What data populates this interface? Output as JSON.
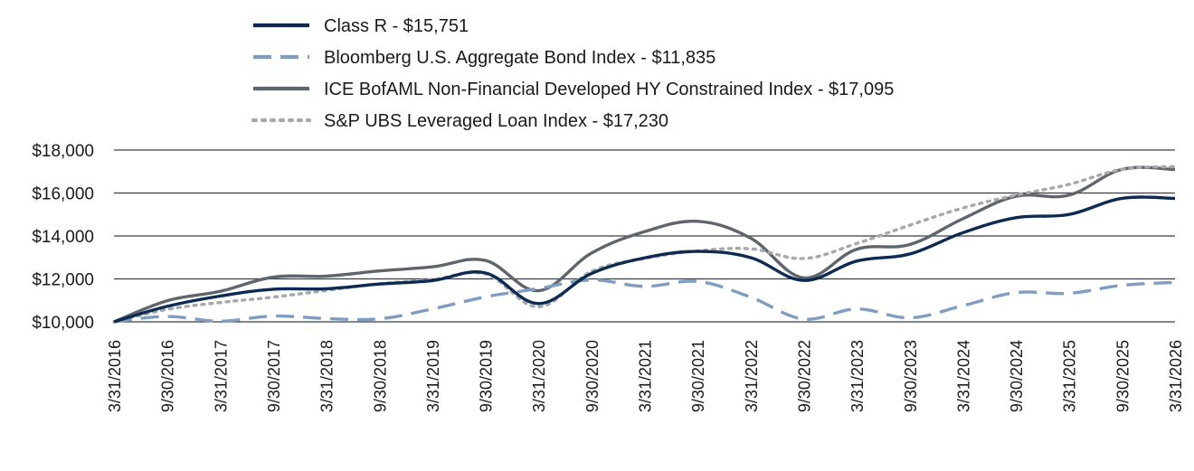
{
  "chart_data": {
    "type": "line",
    "title": "",
    "xlabel": "",
    "ylabel": "",
    "ylim": [
      10000,
      18000
    ],
    "yticks": [
      10000,
      12000,
      14000,
      16000,
      18000
    ],
    "ytick_labels": [
      "$10,000",
      "$12,000",
      "$14,000",
      "$16,000",
      "$18,000"
    ],
    "grid": "horizontal",
    "legend_position": "top-left",
    "categories": [
      "3/31/2016",
      "9/30/2016",
      "3/31/2017",
      "9/30/2017",
      "3/31/2018",
      "9/30/2018",
      "3/31/2019",
      "9/30/2019",
      "3/31/2020",
      "9/30/2020",
      "3/31/2021",
      "9/30/2021",
      "3/31/2022",
      "9/30/2022",
      "3/31/2023",
      "9/30/2023",
      "3/31/2024",
      "9/30/2024",
      "3/31/2025",
      "9/30/2025",
      "3/31/2026"
    ],
    "series": [
      {
        "name": "Class R - $15,751",
        "color": "#0d2a52",
        "style": "solid",
        "values": [
          10000,
          10720,
          11200,
          11520,
          11540,
          11760,
          11920,
          12280,
          10850,
          12250,
          12980,
          13280,
          12990,
          11930,
          12830,
          13160,
          14150,
          14850,
          15000,
          15750,
          15751
        ]
      },
      {
        "name": "Bloomberg U.S. Aggregate Bond Index - $11,835",
        "color": "#7f9cc3",
        "style": "dashed",
        "values": [
          10000,
          10250,
          10030,
          10270,
          10150,
          10140,
          10600,
          11160,
          11550,
          11950,
          11650,
          11880,
          11150,
          10130,
          10600,
          10190,
          10750,
          11360,
          11330,
          11700,
          11835
        ]
      },
      {
        "name": "ICE BofAML Non-Financial Developed HY Constrained Index - $17,095",
        "color": "#5f656c",
        "style": "solid",
        "values": [
          10000,
          10980,
          11420,
          12080,
          12130,
          12370,
          12560,
          12860,
          11450,
          13200,
          14200,
          14680,
          13900,
          12050,
          13380,
          13600,
          14800,
          15850,
          15900,
          17100,
          17095
        ]
      },
      {
        "name": "S&P UBS Leveraged Loan Index - $17,230",
        "color": "#a6a8ab",
        "style": "dotted",
        "values": [
          10000,
          10580,
          10900,
          11150,
          11460,
          11770,
          11970,
          12230,
          10700,
          12350,
          12950,
          13300,
          13400,
          12950,
          13650,
          14500,
          15300,
          15900,
          16400,
          17100,
          17230
        ]
      }
    ]
  }
}
